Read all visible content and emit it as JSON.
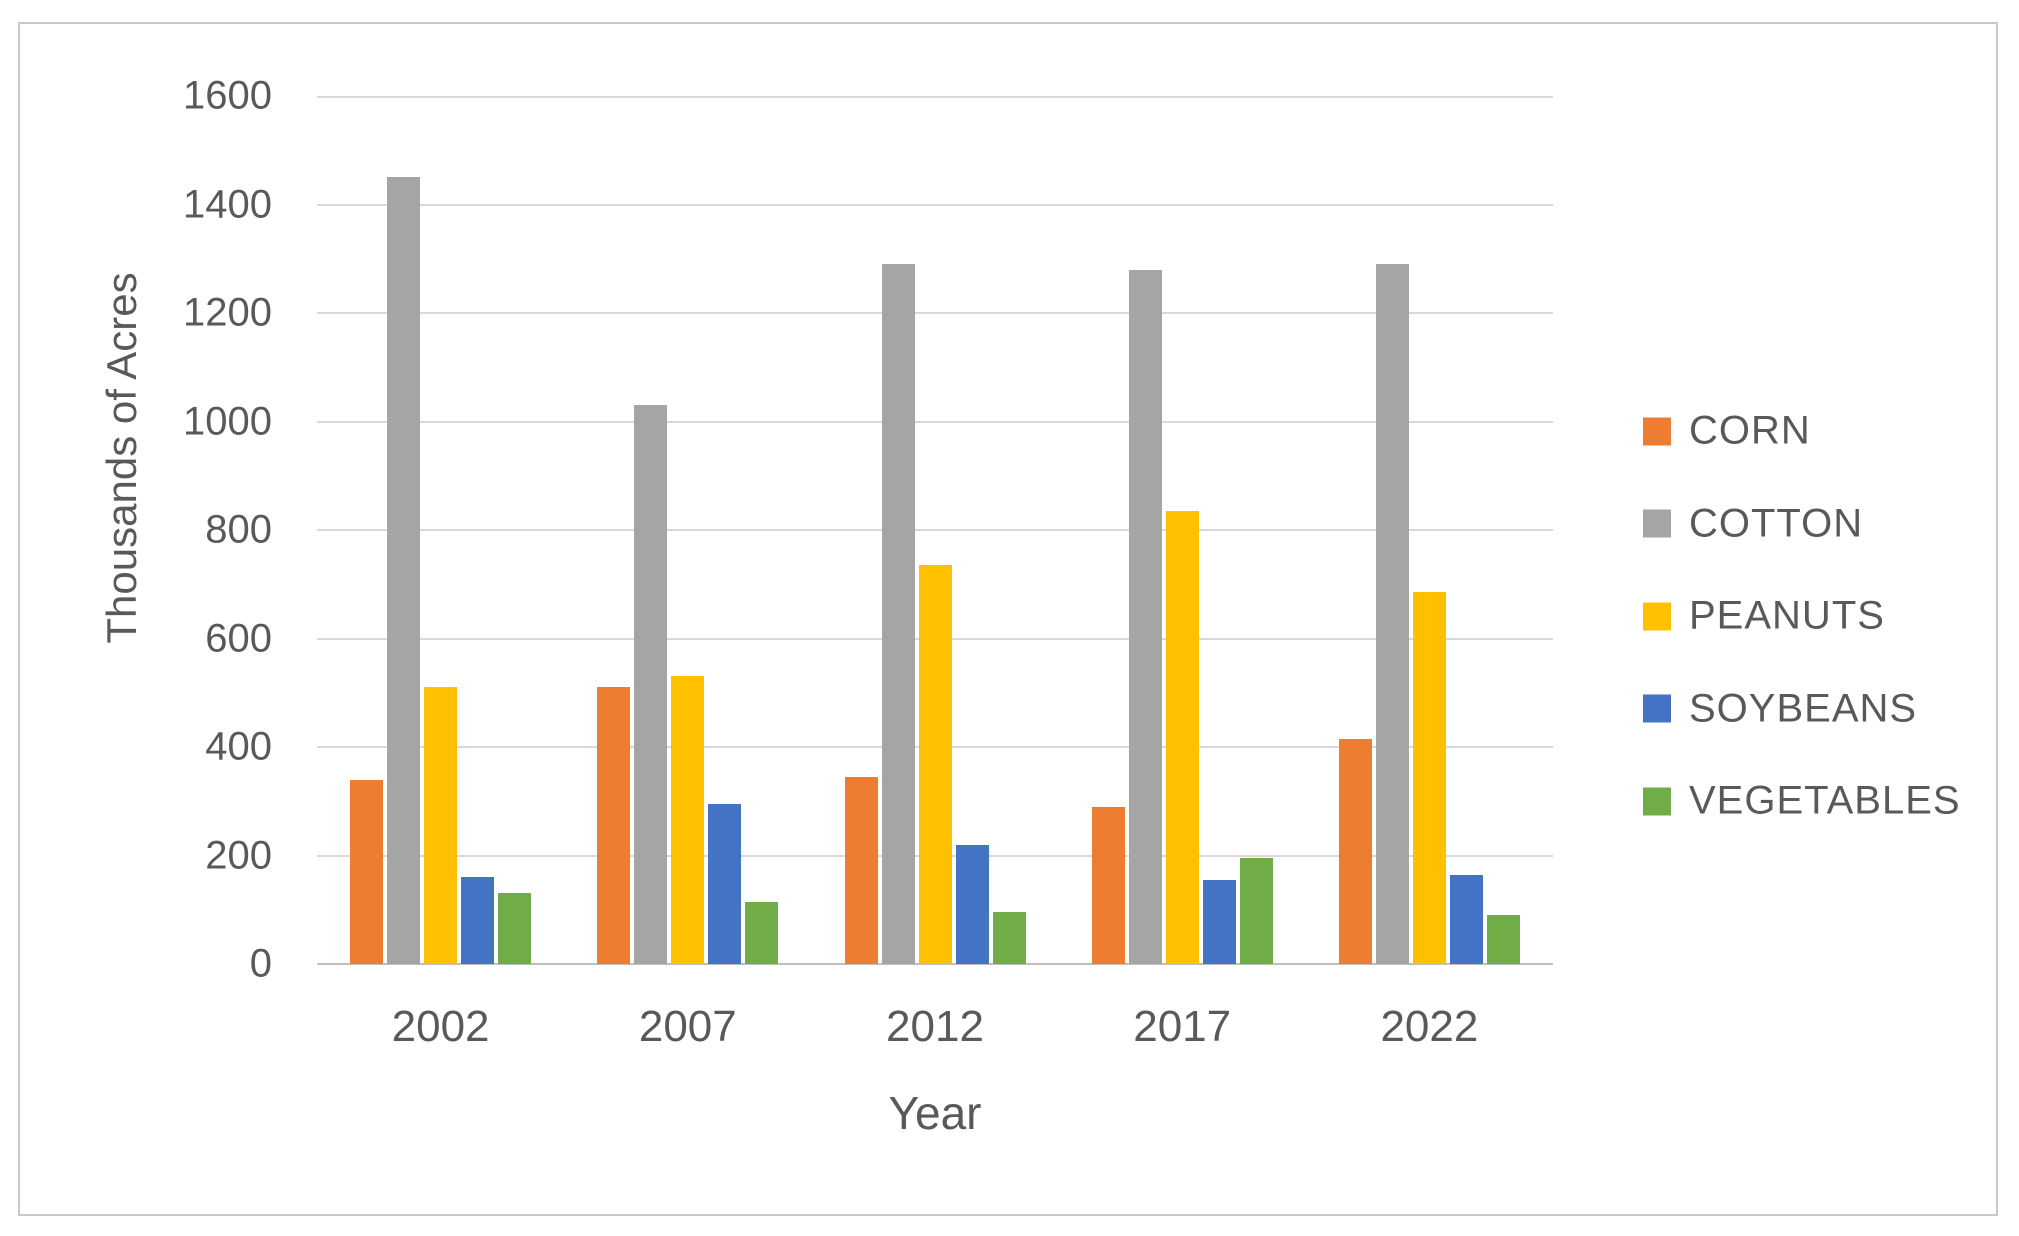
{
  "chart_data": {
    "type": "bar",
    "title": "",
    "categories": [
      "2002",
      "2007",
      "2012",
      "2017",
      "2022"
    ],
    "series": [
      {
        "name": "CORN",
        "color": "#ED7D31",
        "values": [
          340,
          510,
          345,
          290,
          415
        ]
      },
      {
        "name": "COTTON",
        "color": "#A5A5A5",
        "values": [
          1450,
          1030,
          1290,
          1280,
          1290
        ]
      },
      {
        "name": "PEANUTS",
        "color": "#FFC000",
        "values": [
          510,
          530,
          735,
          835,
          685
        ]
      },
      {
        "name": "SOYBEANS",
        "color": "#4472C4",
        "values": [
          160,
          295,
          220,
          155,
          165
        ]
      },
      {
        "name": "VEGETABLES",
        "color": "#70AD47",
        "values": [
          130,
          115,
          95,
          195,
          90
        ]
      }
    ],
    "xlabel": "Year",
    "ylabel": "Thousands of Acres",
    "ylim": [
      0,
      1600
    ],
    "ytick_step": 200,
    "yticks": [
      0,
      200,
      400,
      600,
      800,
      1000,
      1200,
      1400,
      1600
    ],
    "grid": true,
    "legend_position": "right"
  },
  "style": {
    "gridline_color": "#D9D9D9",
    "axis_line_color": "#BFBFBF",
    "text_color": "#595959",
    "figure_border_color": "#C9C9C9",
    "background_color": "#FFFFFF"
  }
}
